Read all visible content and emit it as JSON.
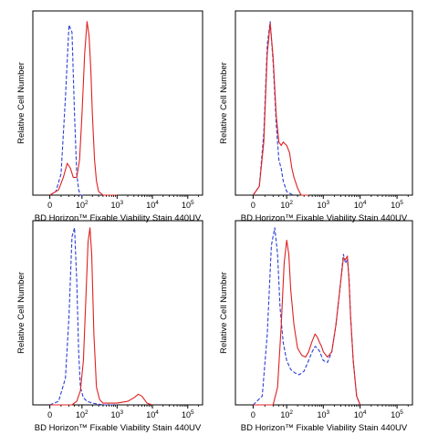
{
  "chart_data": [
    {
      "type": "line",
      "panel": "top-left",
      "xlabel": "BD Horizon™ Fixable Viability Stain 440UV",
      "ylabel": "Relative Cell Number",
      "xscale": "log",
      "ticks": [
        {
          "base": "0",
          "exp": ""
        },
        {
          "base": "10",
          "exp": "2"
        },
        {
          "base": "10",
          "exp": "3"
        },
        {
          "base": "10",
          "exp": "4"
        },
        {
          "base": "10",
          "exp": "5"
        }
      ],
      "series": [
        {
          "style": "dashed",
          "color": "#2b3fd6",
          "x": [
            0,
            10,
            20,
            30,
            40,
            50,
            60,
            70,
            80,
            90,
            110
          ],
          "y": [
            0,
            2,
            12,
            55,
            96,
            92,
            45,
            12,
            3,
            0,
            0
          ]
        },
        {
          "style": "solid",
          "color": "#e02020",
          "x": [
            0,
            15,
            25,
            35,
            45,
            55,
            70,
            85,
            100,
            120,
            140,
            160,
            180,
            200,
            230,
            260,
            300,
            400,
            1000
          ],
          "y": [
            0,
            3,
            10,
            18,
            15,
            10,
            10,
            20,
            45,
            80,
            98,
            90,
            70,
            45,
            20,
            8,
            2,
            0,
            0
          ]
        }
      ]
    },
    {
      "type": "line",
      "panel": "top-right",
      "xlabel": "BD Horizon™ Fixable Viability Stain 440UV",
      "ylabel": "Relative Cell Number",
      "xscale": "log",
      "ticks": [
        {
          "base": "0",
          "exp": ""
        },
        {
          "base": "10",
          "exp": "2"
        },
        {
          "base": "10",
          "exp": "3"
        },
        {
          "base": "10",
          "exp": "4"
        },
        {
          "base": "10",
          "exp": "5"
        }
      ],
      "series": [
        {
          "style": "dashed",
          "color": "#2b3fd6",
          "x": [
            0,
            10,
            18,
            25,
            32,
            40,
            50,
            60,
            70,
            80,
            100,
            150
          ],
          "y": [
            0,
            5,
            35,
            85,
            98,
            75,
            40,
            20,
            15,
            8,
            2,
            0
          ]
        },
        {
          "style": "solid",
          "color": "#e02020",
          "x": [
            0,
            10,
            18,
            25,
            32,
            40,
            50,
            60,
            70,
            80,
            100,
            120,
            140,
            160,
            200,
            250,
            400
          ],
          "y": [
            0,
            5,
            30,
            80,
            97,
            78,
            45,
            30,
            28,
            30,
            28,
            24,
            15,
            10,
            4,
            0,
            0
          ]
        }
      ]
    },
    {
      "type": "line",
      "panel": "bottom-left",
      "xlabel": "BD Horizon™ Fixable Viability Stain 440UV",
      "ylabel": "Relative Cell Number",
      "xscale": "log",
      "ticks": [
        {
          "base": "0",
          "exp": ""
        },
        {
          "base": "10",
          "exp": "2"
        },
        {
          "base": "10",
          "exp": "3"
        },
        {
          "base": "10",
          "exp": "4"
        },
        {
          "base": "10",
          "exp": "5"
        }
      ],
      "series": [
        {
          "style": "dashed",
          "color": "#2b3fd6",
          "x": [
            0,
            15,
            30,
            40,
            50,
            60,
            70,
            80,
            90,
            110,
            140,
            200,
            400,
            1000
          ],
          "y": [
            0,
            2,
            15,
            50,
            95,
            100,
            70,
            30,
            10,
            4,
            2,
            1,
            0,
            0
          ]
        },
        {
          "style": "solid",
          "color": "#e02020",
          "x": [
            0,
            50,
            70,
            90,
            110,
            130,
            150,
            170,
            190,
            220,
            260,
            320,
            400,
            600,
            1000,
            2000,
            3000,
            4000,
            5000,
            7000,
            10000
          ],
          "y": [
            0,
            0,
            2,
            8,
            25,
            60,
            92,
            100,
            85,
            40,
            10,
            3,
            1,
            1,
            1,
            2,
            4,
            6,
            5,
            1,
            0
          ]
        }
      ]
    },
    {
      "type": "line",
      "panel": "bottom-right",
      "xlabel": "BD Horizon™ Fixable Viability Stain 440UV",
      "ylabel": "Relative Cell Number",
      "xscale": "log",
      "ticks": [
        {
          "base": "0",
          "exp": ""
        },
        {
          "base": "10",
          "exp": "2"
        },
        {
          "base": "10",
          "exp": "3"
        },
        {
          "base": "10",
          "exp": "4"
        },
        {
          "base": "10",
          "exp": "5"
        }
      ],
      "series": [
        {
          "style": "dashed",
          "color": "#2b3fd6",
          "x": [
            0,
            15,
            25,
            35,
            45,
            55,
            65,
            80,
            100,
            130,
            170,
            220,
            300,
            400,
            500,
            600,
            700,
            800,
            1000,
            1300,
            1700,
            2200,
            2800,
            3500,
            4000,
            4500,
            5000,
            5500,
            6500,
            8000,
            10000
          ],
          "y": [
            0,
            5,
            40,
            90,
            100,
            85,
            55,
            35,
            25,
            20,
            18,
            17,
            19,
            25,
            30,
            33,
            32,
            30,
            25,
            24,
            30,
            45,
            65,
            85,
            80,
            82,
            72,
            50,
            25,
            5,
            0
          ]
        },
        {
          "style": "solid",
          "color": "#e02020",
          "x": [
            0,
            40,
            55,
            70,
            85,
            100,
            115,
            130,
            160,
            200,
            260,
            330,
            400,
            500,
            600,
            700,
            800,
            900,
            1000,
            1300,
            1700,
            2200,
            2800,
            3500,
            4000,
            4500,
            5000,
            5500,
            6500,
            8000,
            10000
          ],
          "y": [
            0,
            0,
            10,
            45,
            80,
            93,
            85,
            65,
            45,
            32,
            28,
            27,
            30,
            36,
            40,
            38,
            35,
            33,
            30,
            27,
            30,
            45,
            65,
            83,
            82,
            84,
            70,
            50,
            25,
            5,
            0
          ]
        }
      ]
    }
  ]
}
